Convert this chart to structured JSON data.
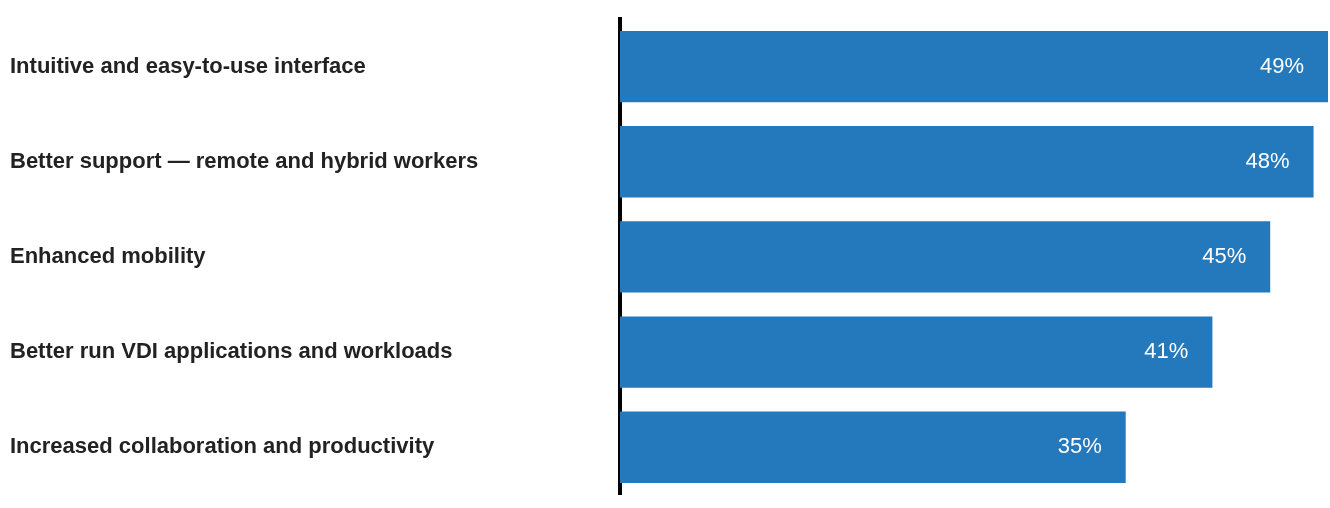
{
  "chart_data": {
    "type": "bar",
    "orientation": "horizontal",
    "categories": [
      "Intuitive and easy-to-use interface",
      "Better support — remote and hybrid workers",
      "Enhanced mobility",
      "Better run VDI applications and workloads",
      "Increased collaboration and productivity"
    ],
    "values": [
      49,
      48,
      45,
      41,
      35
    ],
    "color": "#2479bc",
    "xlim": [
      0,
      49
    ],
    "data_labels": true,
    "value_labels": [
      "49%",
      "48%",
      "45%",
      "41%",
      "35%"
    ],
    "legend": false
  }
}
